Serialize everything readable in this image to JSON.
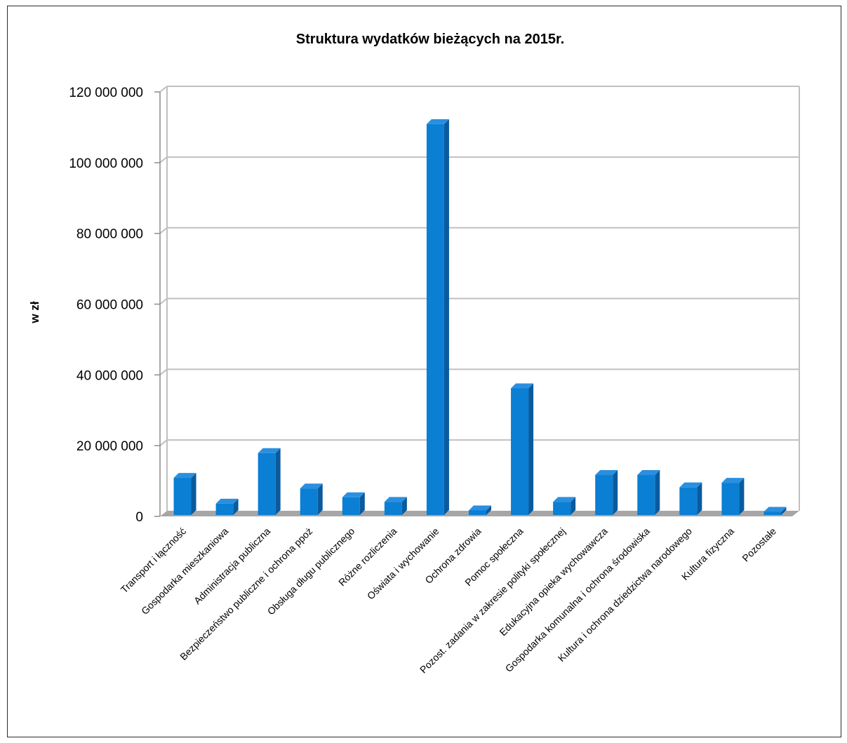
{
  "chart_data": {
    "type": "bar",
    "title": "Struktura wydatków bieżących na 2015r.",
    "xlabel": "",
    "ylabel": "w zł",
    "ylim": [
      0,
      120000000
    ],
    "yticks": [
      0,
      20000000,
      40000000,
      60000000,
      80000000,
      100000000,
      120000000
    ],
    "ytick_labels": [
      "0",
      "20 000 000",
      "40 000 000",
      "60 000 000",
      "80 000 000",
      "100 000 000",
      "120 000 000"
    ],
    "grid": true,
    "legend": "none",
    "categories": [
      "Transport i łączność",
      "Gospodarka mieszkaniowa",
      "Administracja publiczna",
      "Bezpieczeństwo publiczne i ochrona ppoż",
      "Obsługa długu publicznego",
      "Różne rozliczenia",
      "Oświata i wychowanie",
      "Ochrona zdrowia",
      "Pomoc społeczna",
      "Pozost. zadania w zakresie polityki społecznej",
      "Edukacyjna opieka wychowawcza",
      "Gospodarka komunalna i ochrona środowiska",
      "Kultura i ochrona dziedzictwa narodowego",
      "Kultura fizyczna",
      "Pozostałe"
    ],
    "values": [
      10500000,
      3200000,
      17500000,
      7500000,
      5000000,
      3700000,
      110500000,
      1300000,
      35800000,
      3700000,
      11300000,
      11300000,
      7800000,
      9100000,
      900000
    ],
    "colors": {
      "bar_front": "#0a7fd4",
      "bar_side": "#0a5a9e",
      "bar_top": "#2a8fe0",
      "grid": "#c0c0c0",
      "floor": "#a6a6a6",
      "axis": "#8c8c8c"
    }
  }
}
